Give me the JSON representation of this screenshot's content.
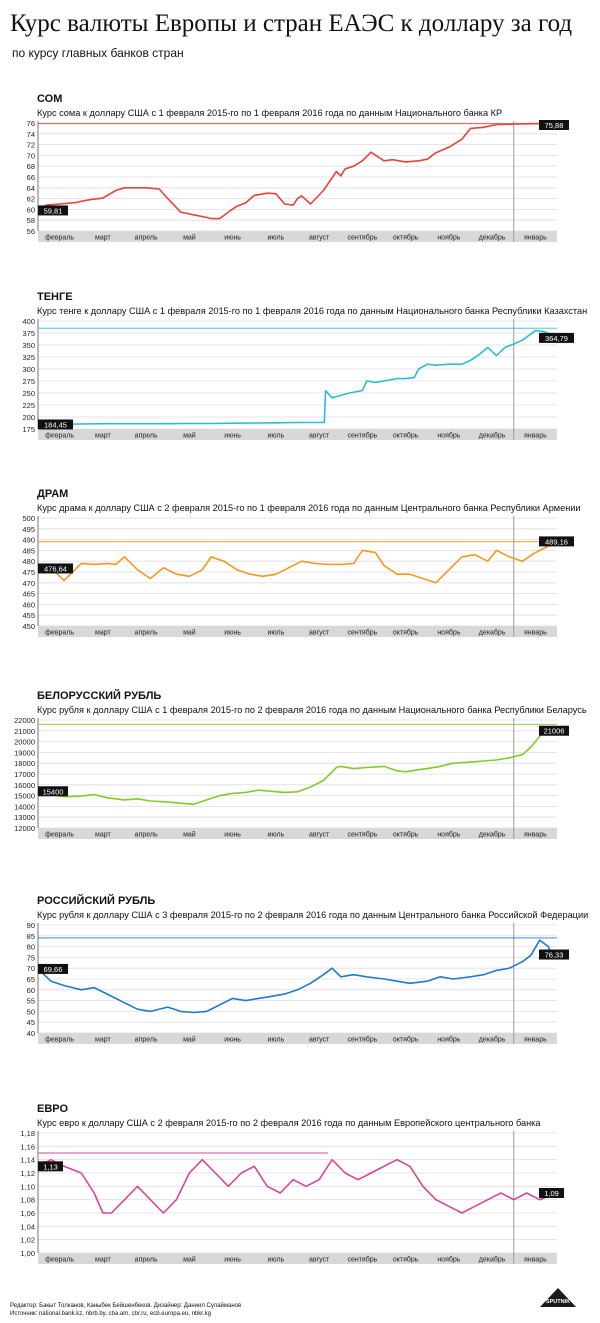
{
  "header": {
    "title": "Курс валюты Европы и стран ЕАЭС к доллару за год",
    "subtitle": "по курсу главных банков стран"
  },
  "months": [
    "февраль",
    "март",
    "апрель",
    "май",
    "июнь",
    "июль",
    "август",
    "сентябрь",
    "октябрь",
    "ноябрь",
    "декабрь",
    "январь"
  ],
  "footer": {
    "credits": "Редактор: Бакыт Толканов, Каныбек Бейшенбеков. Дизайнер: Даниил Сулайманов",
    "sources": "Источник: national.bank.kz, nbrb.by, cba.am, cbr.ru, ecb.europa.eu, nbkr.kg",
    "logo": "SPUTNIK"
  },
  "colors": {
    "som": "#e8423b",
    "tenge": "#2bbcd4",
    "dram": "#f39a1e",
    "byr": "#7fcc28",
    "rub": "#1f7bd0",
    "eur": "#d6459c"
  },
  "chart_data": [
    {
      "type": "line",
      "title": "СОМ",
      "subtitle": "Курс сома к доллару США с 1 февраля 2015-го по 1 февраля 2016 года по данным Национального банка КР",
      "ylim": [
        56,
        76
      ],
      "yticks": [
        "56",
        "58",
        "60",
        "62",
        "64",
        "66",
        "68",
        "70",
        "72",
        "74",
        "76"
      ],
      "yticks_v": [
        56,
        58,
        60,
        62,
        64,
        66,
        68,
        70,
        72,
        74,
        76
      ],
      "ref": 75.88,
      "start_label": "59,81",
      "end_label": "75,88",
      "x": [
        0,
        0.1,
        0.2,
        0.5,
        0.9,
        1.0,
        1.2,
        1.5,
        1.8,
        2.0,
        2.2,
        2.5,
        2.8,
        3.0,
        3.3,
        3.6,
        3.9,
        4.0,
        4.2,
        4.4,
        4.6,
        4.8,
        5.0,
        5.3,
        5.5,
        5.7,
        5.9,
        6.0,
        6.1,
        6.3,
        6.6,
        6.9,
        7.0,
        7.1,
        7.3,
        7.5,
        7.7,
        8.0,
        8.2,
        8.5,
        8.8,
        9.0,
        9.2,
        9.5,
        9.8,
        10.0,
        10.3,
        10.6,
        11.0,
        11.3,
        11.7,
        12.0
      ],
      "series": [
        {
          "name": "СОМ",
          "values": [
            59.81,
            60.4,
            60.8,
            61.0,
            61.3,
            61.5,
            61.8,
            62.1,
            63.5,
            64.0,
            64.0,
            64.0,
            63.8,
            62.0,
            59.5,
            59.0,
            58.5,
            58.3,
            58.3,
            59.5,
            60.6,
            61.2,
            62.6,
            63.0,
            62.9,
            61.0,
            60.8,
            62.0,
            62.5,
            61.0,
            63.5,
            67.0,
            66.2,
            67.5,
            68.0,
            69.0,
            70.6,
            69.0,
            69.2,
            68.8,
            69.0,
            69.3,
            70.5,
            71.5,
            73.0,
            75.0,
            75.2,
            75.7,
            75.8,
            75.85,
            75.88,
            75.88
          ]
        }
      ]
    },
    {
      "type": "line",
      "title": "ТЕНГЕ",
      "subtitle": "Курс тенге к доллару США с 1 февраля 2015-го по 1 февраля 2016 года по данным Национального банка Республики Казахстан",
      "ylim": [
        175,
        400
      ],
      "yticks": [
        "175",
        "200",
        "225",
        "250",
        "275",
        "300",
        "325",
        "350",
        "375",
        "400"
      ],
      "yticks_v": [
        175,
        200,
        225,
        250,
        275,
        300,
        325,
        350,
        375,
        400
      ],
      "ref": 385,
      "start_label": "184,45",
      "end_label": "364,79",
      "x": [
        0,
        0.5,
        1.0,
        1.5,
        2.0,
        2.5,
        3.0,
        3.5,
        4.0,
        4.5,
        5.0,
        5.5,
        6.0,
        6.5,
        6.62,
        6.65,
        6.8,
        7.0,
        7.2,
        7.5,
        7.6,
        7.8,
        8.0,
        8.3,
        8.5,
        8.7,
        8.8,
        9.0,
        9.2,
        9.5,
        9.8,
        10.0,
        10.2,
        10.4,
        10.6,
        10.8,
        11.0,
        11.2,
        11.5,
        11.7,
        11.9,
        12.0
      ],
      "series": [
        {
          "name": "ТЕНГЕ",
          "values": [
            184.45,
            185,
            185.5,
            186,
            186,
            186,
            186,
            186.5,
            186.5,
            187,
            187.5,
            188,
            188.5,
            188.5,
            188.5,
            255,
            240,
            245,
            250,
            255,
            275,
            272,
            275,
            280,
            280,
            282,
            300,
            310,
            308,
            310,
            310,
            318,
            330,
            345,
            328,
            345,
            352,
            360,
            380,
            378,
            370,
            364.79
          ]
        }
      ]
    },
    {
      "type": "line",
      "title": "ДРАМ",
      "subtitle": "Курс драма к доллару США с 2 февраля 2015-го по 1 февраля 2016 года по данным Центрального банка Республики Армении",
      "ylim": [
        450,
        500
      ],
      "yticks": [
        "450",
        "455",
        "460",
        "465",
        "470",
        "475",
        "480",
        "485",
        "490",
        "495",
        "500"
      ],
      "yticks_v": [
        450,
        455,
        460,
        465,
        470,
        475,
        480,
        485,
        490,
        495,
        500
      ],
      "ref": 489,
      "start_label": "476,64",
      "end_label": "489,16",
      "x": [
        0,
        0.3,
        0.6,
        1.0,
        1.3,
        1.6,
        1.8,
        2.0,
        2.3,
        2.6,
        2.9,
        3.2,
        3.5,
        3.8,
        4.0,
        4.3,
        4.6,
        4.9,
        5.2,
        5.5,
        5.8,
        6.1,
        6.4,
        6.7,
        7.0,
        7.3,
        7.5,
        7.8,
        8.0,
        8.3,
        8.6,
        8.9,
        9.2,
        9.5,
        9.8,
        10.1,
        10.4,
        10.6,
        10.9,
        11.2,
        11.5,
        11.8,
        12.0
      ],
      "series": [
        {
          "name": "ДРАМ",
          "values": [
            476.64,
            477,
            471,
            479,
            478.5,
            479,
            478.5,
            482,
            476,
            472,
            477,
            474,
            473,
            476,
            482,
            480,
            476,
            474,
            473,
            474,
            477,
            480,
            479,
            478.5,
            478.5,
            479,
            485,
            484,
            478,
            474,
            474,
            472,
            470,
            476,
            482,
            483,
            480,
            485,
            482,
            480,
            484,
            487,
            489.16
          ]
        }
      ]
    },
    {
      "type": "line",
      "title": "БЕЛОРУССКИЙ РУБЛЬ",
      "subtitle": "Курс рубля к доллару США с 1 февраля 2015-го по 2 февраля 2016 года по данным Национального банка Республики Беларусь",
      "ylim": [
        12000,
        22000
      ],
      "yticks": [
        "12000",
        "13000",
        "14000",
        "15000",
        "16000",
        "17000",
        "18000",
        "19000",
        "20000",
        "21000",
        "22000"
      ],
      "yticks_v": [
        12000,
        13000,
        14000,
        15000,
        16000,
        17000,
        18000,
        19000,
        20000,
        21000,
        22000
      ],
      "ref": 21600,
      "start_label": "15400",
      "end_label": "21006",
      "x": [
        0,
        0.3,
        0.6,
        1.0,
        1.3,
        1.6,
        2.0,
        2.3,
        2.6,
        3.0,
        3.3,
        3.6,
        3.9,
        4.2,
        4.5,
        4.8,
        5.1,
        5.4,
        5.7,
        6.0,
        6.3,
        6.6,
        6.8,
        6.9,
        7.0,
        7.3,
        7.6,
        8.0,
        8.3,
        8.5,
        8.8,
        9.0,
        9.3,
        9.6,
        10.0,
        10.3,
        10.6,
        10.9,
        11.2,
        11.4,
        11.6,
        11.7,
        11.8,
        11.9,
        12.0
      ],
      "series": [
        {
          "name": "БЕЛОРУССКИЙ РУБЛЬ",
          "values": [
            15400,
            15100,
            14900,
            14950,
            15100,
            14800,
            14600,
            14700,
            14500,
            14400,
            14300,
            14200,
            14600,
            15000,
            15200,
            15300,
            15500,
            15400,
            15300,
            15350,
            15800,
            16400,
            17200,
            17600,
            17700,
            17500,
            17600,
            17700,
            17300,
            17200,
            17400,
            17500,
            17700,
            18000,
            18100,
            18200,
            18300,
            18500,
            18800,
            19500,
            20500,
            21300,
            20800,
            21400,
            21006
          ]
        }
      ]
    },
    {
      "type": "line",
      "title": "РОССИЙСКИЙ РУБЛЬ",
      "subtitle": "Курс рубля к доллару США с 3 февраля 2015-го по 2 февраля 2016 года по данным Центрального банка Российской Федерации",
      "ylim": [
        40,
        90
      ],
      "yticks": [
        "40",
        "45",
        "50",
        "55",
        "60",
        "65",
        "70",
        "75",
        "80",
        "85",
        "90"
      ],
      "yticks_v": [
        40,
        45,
        50,
        55,
        60,
        65,
        70,
        75,
        80,
        85,
        90
      ],
      "ref": 84,
      "start_label": "69,66",
      "end_label": "76,33",
      "x": [
        0,
        0.3,
        0.6,
        1.0,
        1.3,
        1.6,
        2.0,
        2.3,
        2.6,
        3.0,
        3.3,
        3.6,
        3.9,
        4.2,
        4.5,
        4.8,
        5.1,
        5.4,
        5.7,
        6.0,
        6.3,
        6.6,
        6.8,
        7.0,
        7.3,
        7.6,
        8.0,
        8.3,
        8.6,
        9.0,
        9.3,
        9.6,
        10.0,
        10.3,
        10.6,
        10.9,
        11.2,
        11.4,
        11.6,
        11.8,
        11.9,
        12.0
      ],
      "series": [
        {
          "name": "РОССИЙСКИЙ РУБЛЬ",
          "values": [
            69.66,
            64,
            62,
            60,
            61,
            58,
            54,
            51,
            50,
            52,
            50,
            49.5,
            50,
            53,
            56,
            55,
            56,
            57,
            58,
            60,
            63,
            67,
            70,
            66,
            67,
            66,
            65,
            64,
            63,
            64,
            66,
            65,
            66,
            67,
            69,
            70,
            73,
            76,
            83,
            80,
            75,
            76.33
          ]
        }
      ]
    },
    {
      "type": "line",
      "title": "ЕВРО",
      "subtitle": "Курс евро к доллару США с 2 февраля 2015-го по 2 февраля 2016 года по данным Европейского центрального банка",
      "ylim": [
        1.0,
        1.18
      ],
      "yticks": [
        "1,00",
        "1,02",
        "1,04",
        "1,06",
        "1,08",
        "1,10",
        "1,12",
        "1,14",
        "1,16",
        "1,18"
      ],
      "yticks_v": [
        1.0,
        1.02,
        1.04,
        1.06,
        1.08,
        1.1,
        1.12,
        1.14,
        1.16,
        1.18
      ],
      "ref": 1.15,
      "ref_x_end": 6.7,
      "start_label": "1,13",
      "end_label": "1,09",
      "x": [
        0,
        0.3,
        0.6,
        1.0,
        1.3,
        1.5,
        1.7,
        2.0,
        2.3,
        2.6,
        2.9,
        3.2,
        3.5,
        3.8,
        4.1,
        4.4,
        4.7,
        5.0,
        5.3,
        5.6,
        5.9,
        6.2,
        6.5,
        6.8,
        7.1,
        7.4,
        7.7,
        8.0,
        8.3,
        8.6,
        8.9,
        9.2,
        9.5,
        9.8,
        10.1,
        10.4,
        10.7,
        11.0,
        11.3,
        11.6,
        12.0
      ],
      "series": [
        {
          "name": "ЕВРО",
          "values": [
            1.13,
            1.14,
            1.13,
            1.12,
            1.09,
            1.06,
            1.06,
            1.08,
            1.1,
            1.08,
            1.06,
            1.08,
            1.12,
            1.14,
            1.12,
            1.1,
            1.12,
            1.13,
            1.1,
            1.09,
            1.11,
            1.1,
            1.11,
            1.14,
            1.12,
            1.11,
            1.12,
            1.13,
            1.14,
            1.13,
            1.1,
            1.08,
            1.07,
            1.06,
            1.07,
            1.08,
            1.09,
            1.08,
            1.09,
            1.08,
            1.09
          ]
        }
      ]
    }
  ]
}
